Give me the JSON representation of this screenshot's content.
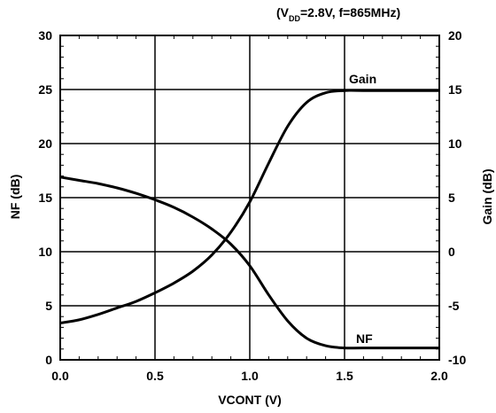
{
  "chart_data": {
    "type": "line",
    "annotation": {
      "prefix": "(V",
      "subscript": "DD",
      "suffix": "=2.8V, f=865MHz)"
    },
    "xlabel": "VCONT (V)",
    "ylabel_left": "NF (dB)",
    "ylabel_right": "Gain (dB)",
    "xlim": [
      0.0,
      2.0
    ],
    "ylim_left": [
      0,
      30
    ],
    "ylim_right": [
      -10,
      20
    ],
    "x_ticks": [
      "0.0",
      "0.5",
      "1.0",
      "1.5",
      "2.0"
    ],
    "y_ticks_left": [
      "0",
      "5",
      "10",
      "15",
      "20",
      "25",
      "30"
    ],
    "y_ticks_right": [
      "-10",
      "-5",
      "0",
      "5",
      "10",
      "15",
      "20"
    ],
    "grid": true,
    "series": [
      {
        "name": "Gain",
        "axis": "right",
        "color": "#000000",
        "x": [
          0.0,
          0.1,
          0.2,
          0.3,
          0.4,
          0.5,
          0.6,
          0.7,
          0.8,
          0.9,
          1.0,
          1.1,
          1.2,
          1.3,
          1.4,
          1.5,
          1.6,
          2.0
        ],
        "y": [
          -6.6,
          -6.3,
          -5.8,
          -5.2,
          -4.6,
          -3.8,
          -2.9,
          -1.8,
          -0.3,
          1.8,
          4.6,
          8.2,
          11.6,
          13.8,
          14.7,
          14.9,
          14.9,
          14.9
        ]
      },
      {
        "name": "NF",
        "axis": "left",
        "color": "#000000",
        "x": [
          0.0,
          0.1,
          0.2,
          0.3,
          0.4,
          0.5,
          0.6,
          0.7,
          0.8,
          0.9,
          1.0,
          1.1,
          1.2,
          1.3,
          1.4,
          1.5,
          1.6,
          2.0
        ],
        "y": [
          16.9,
          16.6,
          16.3,
          15.9,
          15.4,
          14.8,
          14.1,
          13.2,
          12.1,
          10.7,
          8.7,
          6.0,
          3.6,
          2.0,
          1.3,
          1.1,
          1.1,
          1.1
        ]
      }
    ]
  }
}
